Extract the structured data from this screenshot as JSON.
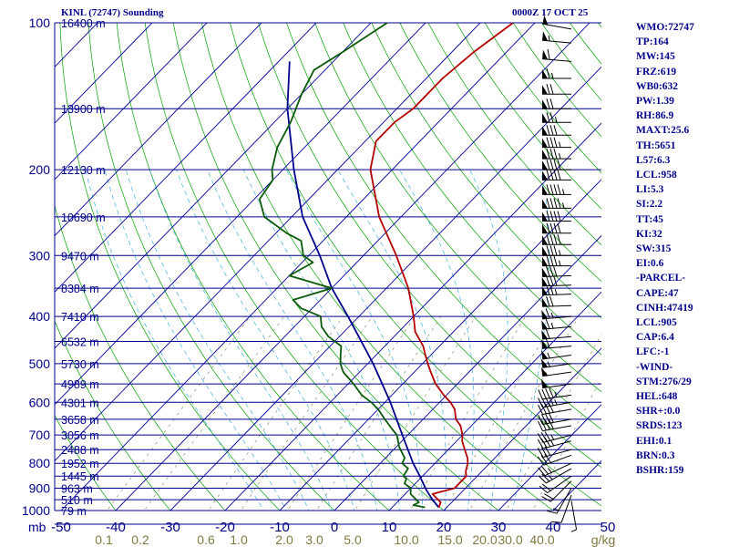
{
  "header": {
    "station": "KINL (72747) Sounding",
    "time": "0000Z 17 OCT 25"
  },
  "indices": [
    "WMO:72747",
    "TP:164",
    "MW:145",
    "FRZ:619",
    "WB0:632",
    "PW:1.39",
    "RH:86.9",
    "MAXT:25.6",
    "TH:5651",
    "L57:6.3",
    "LCL:958",
    "LI:5.3",
    "SI:2.2",
    "TT:45",
    "KI:32",
    "SW:315",
    "EI:0.6",
    "-PARCEL-",
    "CAPE:47",
    "CINH:47419",
    "LCL:905",
    "CAP:6.4",
    "LFC:-1",
    "-WIND-",
    "STM:276/29",
    "HEL:648",
    "SHR+:0.0",
    "SRDS:123",
    "EHI:0.1",
    "BRN:0.3",
    "BSHR:159"
  ],
  "colors": {
    "temperature": "#b40000",
    "dewpoint": "#0a5a0a",
    "parcel": "#00008b",
    "isobar": "#00008b",
    "isotherm": "#0000a0",
    "dry_adiabat": "#00a000",
    "mixing_ratio": "#9aa07a",
    "moist_adiabat": "#40b0e0",
    "text": "#00008b",
    "mixing_label": "#807a40"
  },
  "chart_data": {
    "type": "skew-t",
    "pressure_ticks": [
      "100",
      "200",
      "300",
      "400",
      "500",
      "600",
      "700",
      "800",
      "900",
      "1000"
    ],
    "pressure_unit_label": "mb",
    "temperature_ticks": [
      "-50",
      "-40",
      "-30",
      "-20",
      "-10",
      "0",
      "10",
      "20",
      "30",
      "40",
      "50"
    ],
    "mixing_ratio_ticks": [
      "0.1",
      "0.2",
      "0.6",
      "1.0",
      "2.0",
      "3.0",
      "5.0",
      "10.0",
      "15.0",
      "20.0",
      "30.0",
      "40.0"
    ],
    "mixing_ratio_unit": "g/kg",
    "height_labels": [
      {
        "p": 100,
        "text": "16400 m"
      },
      {
        "p": 150,
        "text": "13900 m"
      },
      {
        "p": 200,
        "text": "12130 m"
      },
      {
        "p": 250,
        "text": "10690 m"
      },
      {
        "p": 300,
        "text": "9470 m"
      },
      {
        "p": 350,
        "text": "8384 m"
      },
      {
        "p": 400,
        "text": "7410 m"
      },
      {
        "p": 450,
        "text": "6532 m"
      },
      {
        "p": 500,
        "text": "5730 m"
      },
      {
        "p": 550,
        "text": "4989 m"
      },
      {
        "p": 600,
        "text": "4301 m"
      },
      {
        "p": 650,
        "text": "3658 m"
      },
      {
        "p": 700,
        "text": "3056 m"
      },
      {
        "p": 750,
        "text": "2488 m"
      },
      {
        "p": 800,
        "text": "1952 m"
      },
      {
        "p": 850,
        "text": "1445 m"
      },
      {
        "p": 900,
        "text": "963 m"
      },
      {
        "p": 950,
        "text": "510 m"
      },
      {
        "p": 1000,
        "text": "79 m"
      }
    ],
    "temperature_profile": [
      [
        985,
        18.5
      ],
      [
        962,
        18
      ],
      [
        925,
        15
      ],
      [
        900,
        18
      ],
      [
        880,
        18
      ],
      [
        850,
        18
      ],
      [
        830,
        17
      ],
      [
        800,
        16
      ],
      [
        780,
        15
      ],
      [
        750,
        13
      ],
      [
        720,
        11
      ],
      [
        700,
        10
      ],
      [
        670,
        8
      ],
      [
        650,
        6
      ],
      [
        620,
        4
      ],
      [
        600,
        2
      ],
      [
        580,
        -0.5
      ],
      [
        550,
        -4
      ],
      [
        520,
        -7
      ],
      [
        500,
        -9
      ],
      [
        480,
        -11
      ],
      [
        460,
        -13
      ],
      [
        430,
        -17
      ],
      [
        400,
        -20
      ],
      [
        350,
        -26
      ],
      [
        300,
        -34
      ],
      [
        250,
        -44
      ],
      [
        200,
        -54
      ],
      [
        175,
        -58
      ],
      [
        160,
        -58
      ],
      [
        150,
        -57
      ],
      [
        130,
        -57
      ],
      [
        115,
        -56
      ],
      [
        100,
        -54
      ]
    ],
    "dewpoint_profile": [
      [
        985,
        16
      ],
      [
        975,
        13.5
      ],
      [
        962,
        14
      ],
      [
        925,
        11
      ],
      [
        900,
        10
      ],
      [
        880,
        8
      ],
      [
        860,
        7.5
      ],
      [
        850,
        6.5
      ],
      [
        820,
        6
      ],
      [
        800,
        4
      ],
      [
        780,
        3.5
      ],
      [
        760,
        2
      ],
      [
        740,
        0.5
      ],
      [
        700,
        -2
      ],
      [
        680,
        -4
      ],
      [
        650,
        -7
      ],
      [
        620,
        -10
      ],
      [
        600,
        -12.5
      ],
      [
        580,
        -15.5
      ],
      [
        550,
        -19
      ],
      [
        520,
        -23
      ],
      [
        500,
        -25
      ],
      [
        480,
        -26.5
      ],
      [
        460,
        -28
      ],
      [
        440,
        -32
      ],
      [
        420,
        -35
      ],
      [
        400,
        -37
      ],
      [
        385,
        -42
      ],
      [
        370,
        -45
      ],
      [
        350,
        -40
      ],
      [
        330,
        -50
      ],
      [
        310,
        -48
      ],
      [
        300,
        -51
      ],
      [
        280,
        -54
      ],
      [
        270,
        -58
      ],
      [
        250,
        -65
      ],
      [
        230,
        -69
      ],
      [
        210,
        -70
      ],
      [
        200,
        -72
      ],
      [
        180,
        -75
      ],
      [
        160,
        -77
      ],
      [
        140,
        -80
      ],
      [
        125,
        -82
      ],
      [
        115,
        -80
      ],
      [
        100,
        -77
      ]
    ],
    "parcel_profile": [
      [
        985,
        18.5
      ],
      [
        950,
        16
      ],
      [
        905,
        13
      ],
      [
        850,
        9.5
      ],
      [
        800,
        6
      ],
      [
        700,
        -1
      ],
      [
        600,
        -9
      ],
      [
        500,
        -19
      ],
      [
        400,
        -32
      ],
      [
        350,
        -40
      ],
      [
        300,
        -48
      ],
      [
        250,
        -58
      ],
      [
        200,
        -68
      ],
      [
        150,
        -80
      ],
      [
        120,
        -88
      ]
    ],
    "wind_barbs": [
      [
        955,
        170,
        5
      ],
      [
        930,
        200,
        10
      ],
      [
        900,
        210,
        15
      ],
      [
        870,
        225,
        20
      ],
      [
        850,
        235,
        20
      ],
      [
        820,
        240,
        25
      ],
      [
        800,
        245,
        25
      ],
      [
        770,
        250,
        30
      ],
      [
        750,
        255,
        30
      ],
      [
        720,
        255,
        35
      ],
      [
        700,
        255,
        35
      ],
      [
        670,
        260,
        40
      ],
      [
        650,
        260,
        40
      ],
      [
        620,
        260,
        40
      ],
      [
        600,
        260,
        45
      ],
      [
        580,
        262,
        45
      ],
      [
        550,
        262,
        50
      ],
      [
        520,
        262,
        50
      ],
      [
        500,
        262,
        55
      ],
      [
        480,
        262,
        55
      ],
      [
        460,
        265,
        60
      ],
      [
        440,
        265,
        60
      ],
      [
        420,
        265,
        65
      ],
      [
        400,
        265,
        65
      ],
      [
        380,
        268,
        70
      ],
      [
        360,
        268,
        75
      ],
      [
        345,
        268,
        80
      ],
      [
        330,
        268,
        80
      ],
      [
        315,
        270,
        85
      ],
      [
        300,
        270,
        85
      ],
      [
        285,
        270,
        90
      ],
      [
        270,
        270,
        90
      ],
      [
        255,
        270,
        90
      ],
      [
        240,
        270,
        95
      ],
      [
        225,
        270,
        95
      ],
      [
        210,
        270,
        90
      ],
      [
        200,
        270,
        90
      ],
      [
        190,
        270,
        85
      ],
      [
        180,
        270,
        85
      ],
      [
        170,
        270,
        80
      ],
      [
        160,
        270,
        75
      ],
      [
        150,
        270,
        70
      ],
      [
        140,
        270,
        70
      ],
      [
        130,
        270,
        65
      ],
      [
        120,
        275,
        60
      ],
      [
        110,
        275,
        55
      ],
      [
        103,
        280,
        50
      ]
    ]
  }
}
